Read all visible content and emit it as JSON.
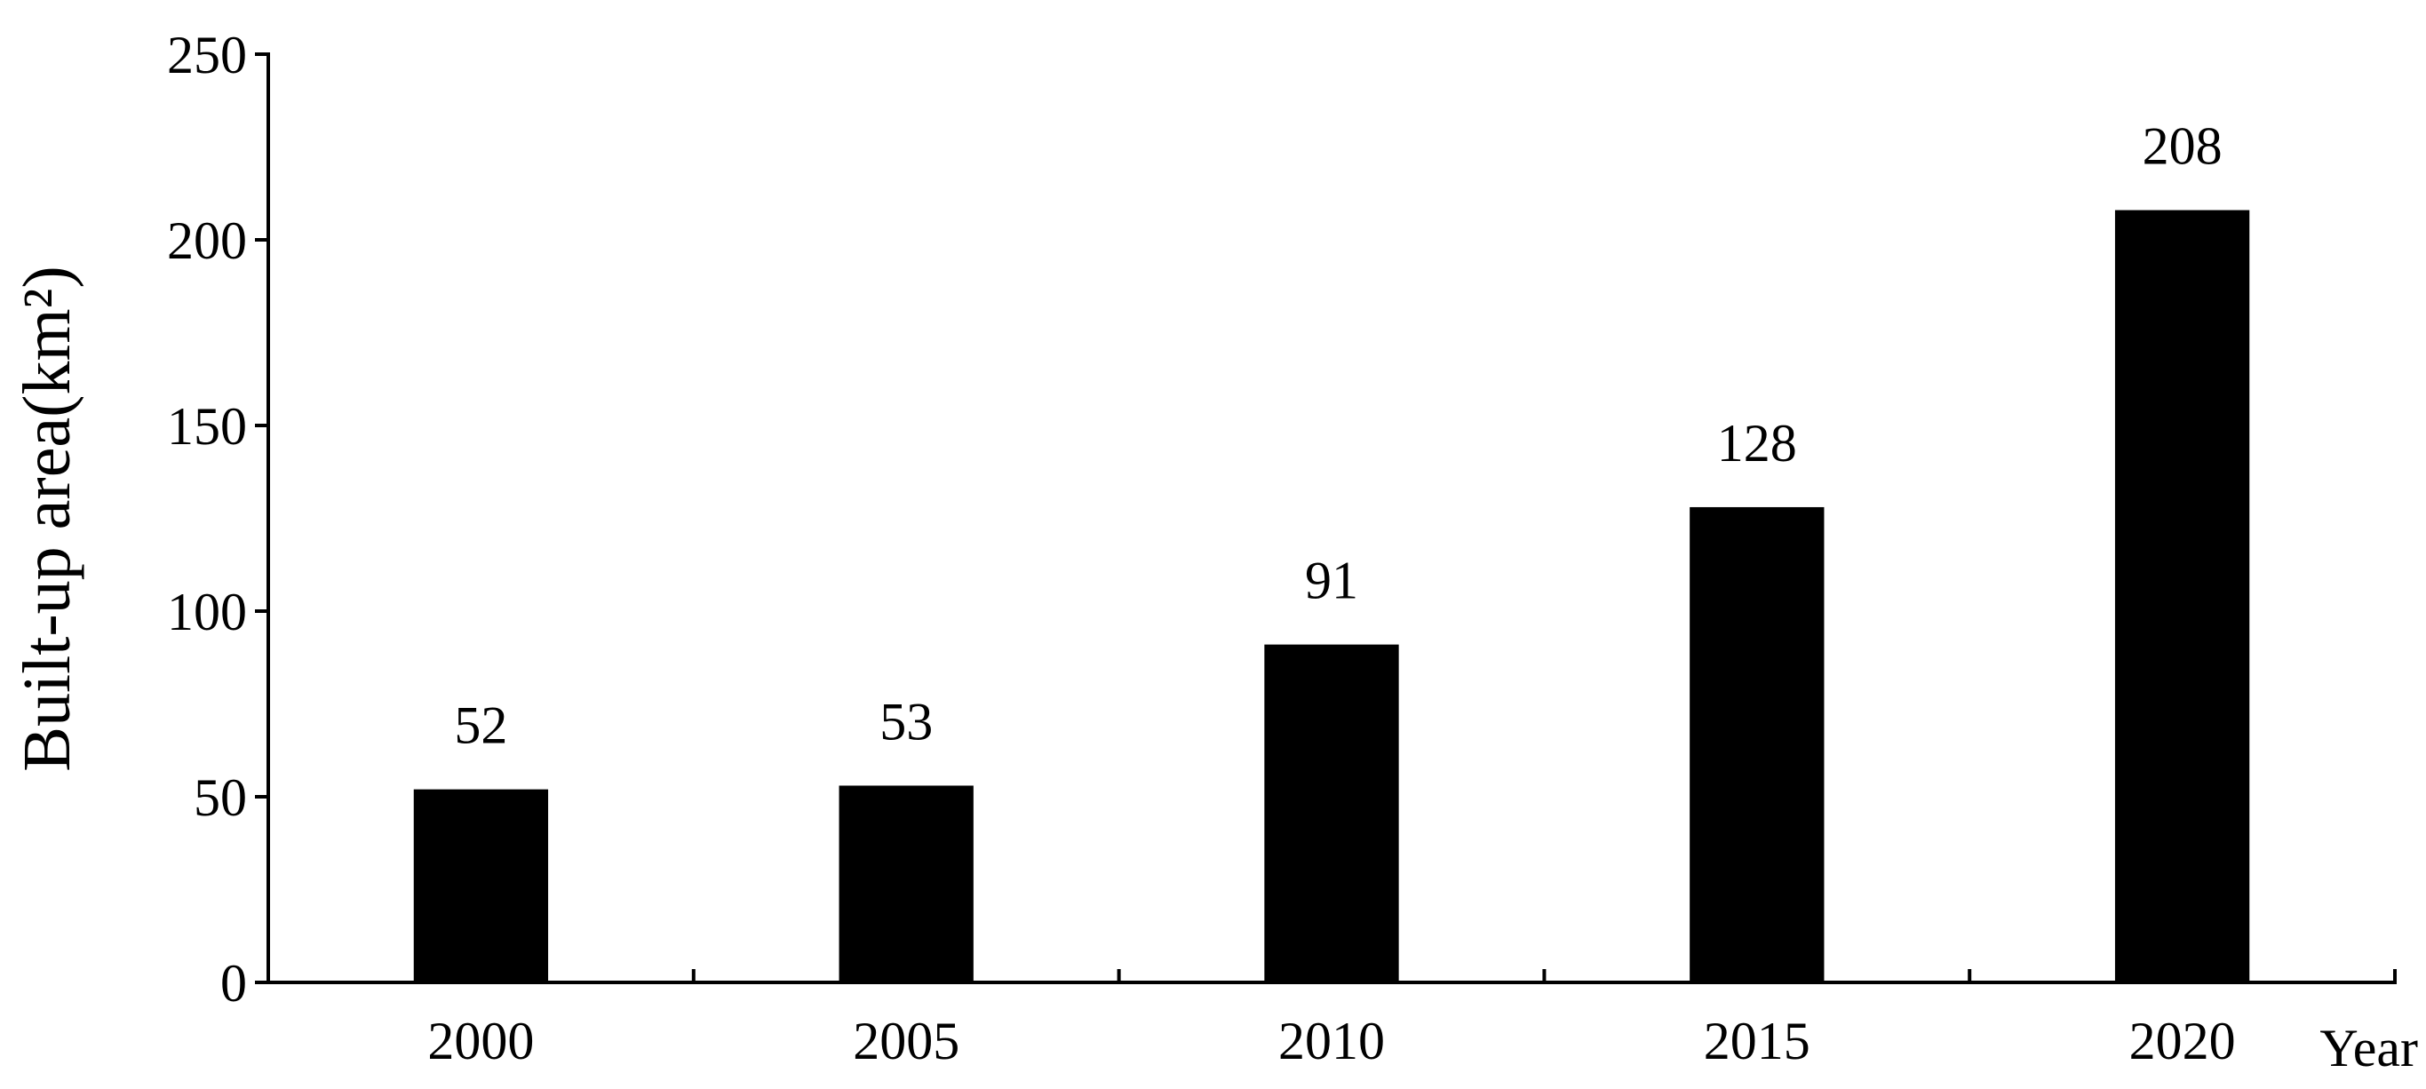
{
  "chart_data": {
    "type": "bar",
    "y_label": "Built-up area(km²)",
    "x_label": "Year",
    "categories": [
      "2000",
      "2005",
      "2010",
      "2015",
      "2020"
    ],
    "values": [
      52,
      53,
      91,
      128,
      208
    ],
    "color": "#000000",
    "ylim": [
      0,
      250
    ],
    "yticks": [
      0,
      50,
      100,
      150,
      200,
      250
    ],
    "grid": false
  }
}
